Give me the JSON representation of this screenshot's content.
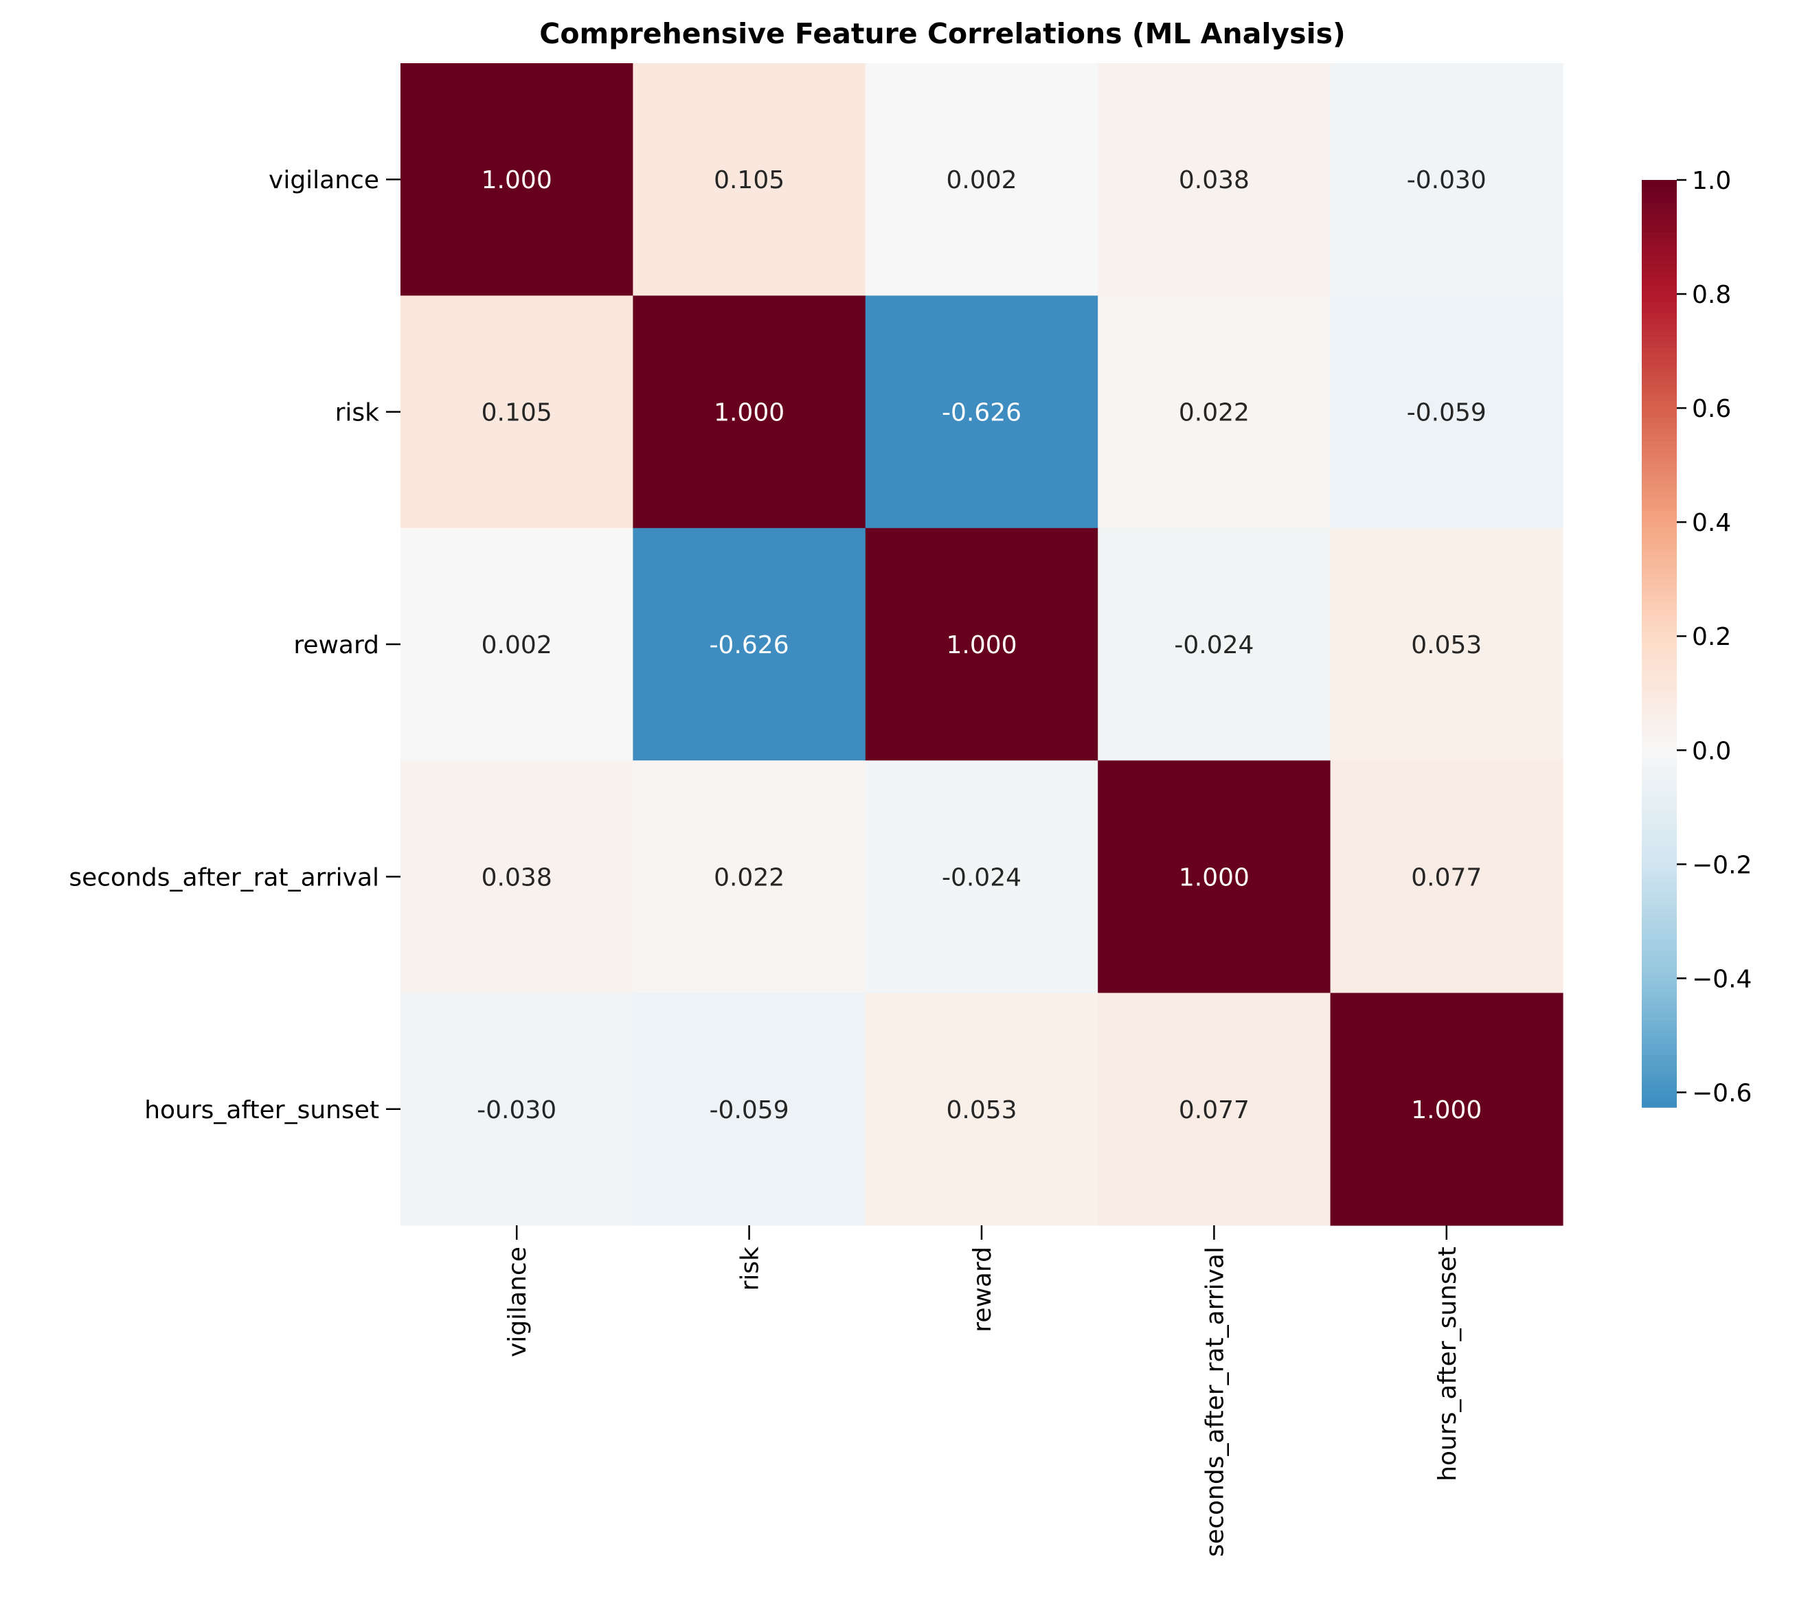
{
  "chart_data": {
    "type": "heatmap",
    "title": "Comprehensive Feature Correlations (ML Analysis)",
    "xlabel": "",
    "ylabel": "",
    "rows": [
      "vigilance",
      "risk",
      "reward",
      "seconds_after_rat_arrival",
      "hours_after_sunset"
    ],
    "columns": [
      "vigilance",
      "risk",
      "reward",
      "seconds_after_rat_arrival",
      "hours_after_sunset"
    ],
    "values": [
      [
        1.0,
        0.105,
        0.002,
        0.038,
        -0.03
      ],
      [
        0.105,
        1.0,
        -0.626,
        0.022,
        -0.059
      ],
      [
        0.002,
        -0.626,
        1.0,
        -0.024,
        0.053
      ],
      [
        0.038,
        0.022,
        -0.024,
        1.0,
        0.077
      ],
      [
        -0.03,
        -0.059,
        0.053,
        0.077,
        1.0
      ]
    ],
    "cell_labels": [
      [
        "1.000",
        "0.105",
        "0.002",
        "0.038",
        "-0.030"
      ],
      [
        "0.105",
        "1.000",
        "-0.626",
        "0.022",
        "-0.059"
      ],
      [
        "0.002",
        "-0.626",
        "1.000",
        "-0.024",
        "0.053"
      ],
      [
        "0.038",
        "0.022",
        "-0.024",
        "1.000",
        "0.077"
      ],
      [
        "-0.030",
        "-0.059",
        "0.053",
        "0.077",
        "1.000"
      ]
    ],
    "colormap": "RdBu_r",
    "vmin": -1.0,
    "vmax": 1.0,
    "colorbar": {
      "range": [
        -0.626,
        1.0
      ],
      "ticks": [
        -0.6,
        -0.4,
        -0.2,
        0.0,
        0.2,
        0.4,
        0.6,
        0.8,
        1.0
      ],
      "tick_labels": [
        "−0.6",
        "−0.4",
        "−0.2",
        "0.0",
        "0.2",
        "0.4",
        "0.6",
        "0.8",
        "1.0"
      ]
    },
    "grid": false
  }
}
